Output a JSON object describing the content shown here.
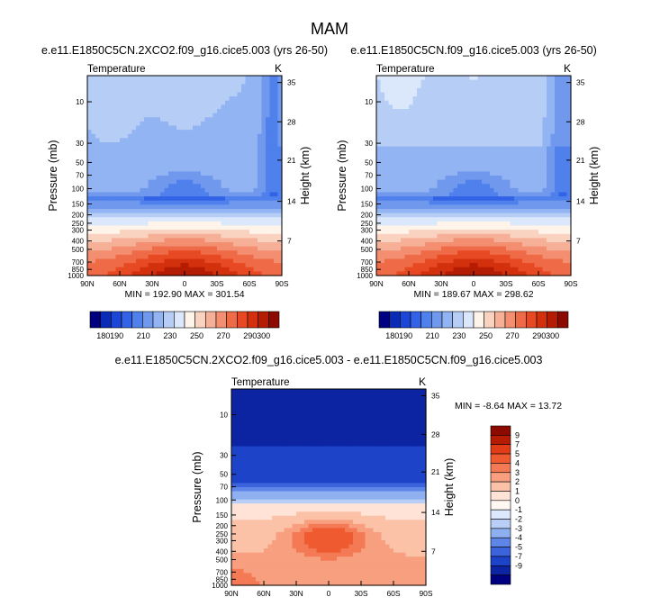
{
  "title": "MAM",
  "chart_data": [
    {
      "type": "heatmap",
      "title": "e.e11.E1850C5CN.2XCO2.f09_g16.cice5.003 (yrs 26-50)",
      "left_label": "Temperature",
      "right_label": "K",
      "ylabel": "Pressure (mb)",
      "ylabel_right": "Height (km)",
      "x_ticks": [
        "90N",
        "60N",
        "30N",
        "0",
        "30S",
        "60S",
        "90S"
      ],
      "y_ticks": [
        "10",
        "30",
        "50",
        "70",
        "100",
        "150",
        "200",
        "250",
        "300",
        "400",
        "500",
        "700",
        "850",
        "1000"
      ],
      "height_ticks": [
        "35",
        "28",
        "21",
        "14",
        "7"
      ],
      "stats": "MIN = 192.90   MAX = 301.54",
      "min": 192.9,
      "max": 301.54,
      "contour_levels": [
        180,
        190,
        200,
        210,
        220,
        230,
        240,
        250,
        260,
        270,
        280,
        290,
        300
      ]
    },
    {
      "type": "heatmap",
      "title": "e.e11.E1850C5CN.f09_g16.cice5.003 (yrs 26-50)",
      "left_label": "Temperature",
      "right_label": "K",
      "ylabel": "Pressure (mb)",
      "ylabel_right": "Height (km)",
      "x_ticks": [
        "90N",
        "60N",
        "30N",
        "0",
        "30S",
        "60S",
        "90S"
      ],
      "y_ticks": [
        "10",
        "30",
        "50",
        "70",
        "100",
        "150",
        "200",
        "250",
        "300",
        "400",
        "500",
        "700",
        "850",
        "1000"
      ],
      "height_ticks": [
        "35",
        "28",
        "21",
        "14",
        "7"
      ],
      "stats": "MIN = 189.67   MAX = 298.62",
      "min": 189.67,
      "max": 298.62,
      "contour_levels": [
        180,
        190,
        200,
        210,
        220,
        230,
        240,
        250,
        260,
        270,
        280,
        290,
        300
      ]
    },
    {
      "type": "heatmap",
      "title": "e.e11.E1850C5CN.2XCO2.f09_g16.cice5.003 - e.e11.E1850C5CN.f09_g16.cice5.003",
      "left_label": "Temperature",
      "right_label": "K",
      "ylabel": "Pressure (mb)",
      "ylabel_right": "Height (km)",
      "x_ticks": [
        "90N",
        "60N",
        "30N",
        "0",
        "30S",
        "60S",
        "90S"
      ],
      "y_ticks": [
        "10",
        "30",
        "50",
        "70",
        "100",
        "150",
        "200",
        "250",
        "300",
        "400",
        "500",
        "700",
        "850",
        "1000"
      ],
      "height_ticks": [
        "35",
        "28",
        "21",
        "14",
        "7"
      ],
      "stats": "MIN = -8.64   MAX = 13.72",
      "min": -8.64,
      "max": 13.72,
      "contour_levels": [
        -9,
        -7,
        -5,
        -4,
        -3,
        -2,
        -1,
        0,
        1,
        2,
        3,
        4,
        5,
        7,
        9
      ]
    }
  ],
  "colorbar_abs": {
    "labels": [
      "180",
      "190",
      "210",
      "230",
      "250",
      "270",
      "290",
      "300"
    ],
    "colors": [
      "#000080",
      "#0a2bb5",
      "#1c47d6",
      "#3263e6",
      "#4f80ec",
      "#7099ee",
      "#93b4f2",
      "#b6cef6",
      "#dbe8fb",
      "#fff4ea",
      "#fad2c0",
      "#f7b098",
      "#f38e70",
      "#ef6a47",
      "#e74a23",
      "#d3300d",
      "#b51c04",
      "#8c0a00"
    ]
  },
  "colorbar_diff": {
    "labels": [
      "9",
      "7",
      "5",
      "4",
      "3",
      "2",
      "1",
      "0",
      "-1",
      "-2",
      "-3",
      "-4",
      "-5",
      "-7",
      "-9"
    ],
    "colors": [
      "#8c0a00",
      "#b51c04",
      "#e03c18",
      "#ef5a30",
      "#f47a55",
      "#f89f80",
      "#fbc2a8",
      "#fee3d6",
      "#fff8f2",
      "#dce8fb",
      "#b8cef6",
      "#8fb0f0",
      "#5e86e8",
      "#3a63dc",
      "#1d43c8",
      "#0c24a2",
      "#000080"
    ]
  }
}
